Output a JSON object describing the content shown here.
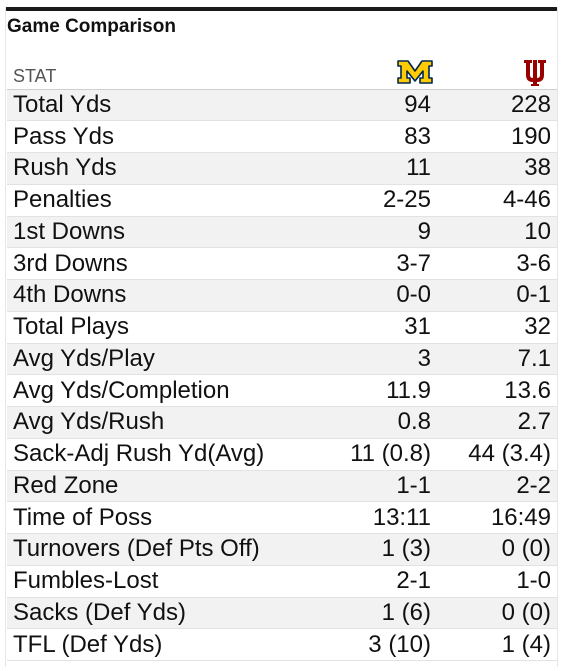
{
  "panel": {
    "title": "Game Comparison",
    "stat_header": "STAT",
    "team1": {
      "logo_icon": "michigan-block-m-icon",
      "color": "#FFCB05",
      "outline": "#00274C"
    },
    "team2": {
      "logo_icon": "indiana-iu-trident-icon",
      "color": "#990000"
    }
  },
  "rows": [
    {
      "stat": "Total Yds",
      "team1": "94",
      "team2": "228"
    },
    {
      "stat": "Pass Yds",
      "team1": "83",
      "team2": "190"
    },
    {
      "stat": "Rush Yds",
      "team1": "11",
      "team2": "38"
    },
    {
      "stat": "Penalties",
      "team1": "2-25",
      "team2": "4-46"
    },
    {
      "stat": "1st Downs",
      "team1": "9",
      "team2": "10"
    },
    {
      "stat": "3rd Downs",
      "team1": "3-7",
      "team2": "3-6"
    },
    {
      "stat": "4th Downs",
      "team1": "0-0",
      "team2": "0-1"
    },
    {
      "stat": "Total Plays",
      "team1": "31",
      "team2": "32"
    },
    {
      "stat": "Avg Yds/Play",
      "team1": "3",
      "team2": "7.1"
    },
    {
      "stat": "Avg Yds/Completion",
      "team1": "11.9",
      "team2": "13.6"
    },
    {
      "stat": "Avg Yds/Rush",
      "team1": "0.8",
      "team2": "2.7"
    },
    {
      "stat": "Sack-Adj Rush Yd(Avg)",
      "team1": "11 (0.8)",
      "team2": "44 (3.4)"
    },
    {
      "stat": "Red Zone",
      "team1": "1-1",
      "team2": "2-2"
    },
    {
      "stat": "Time of Poss",
      "team1": "13:11",
      "team2": "16:49"
    },
    {
      "stat": "Turnovers (Def Pts Off)",
      "team1": "1 (3)",
      "team2": "0 (0)"
    },
    {
      "stat": "Fumbles-Lost",
      "team1": "2-1",
      "team2": "1-0"
    },
    {
      "stat": "Sacks (Def Yds)",
      "team1": "1 (6)",
      "team2": "0 (0)"
    },
    {
      "stat": "TFL (Def Yds)",
      "team1": "3 (10)",
      "team2": "1 (4)"
    }
  ]
}
